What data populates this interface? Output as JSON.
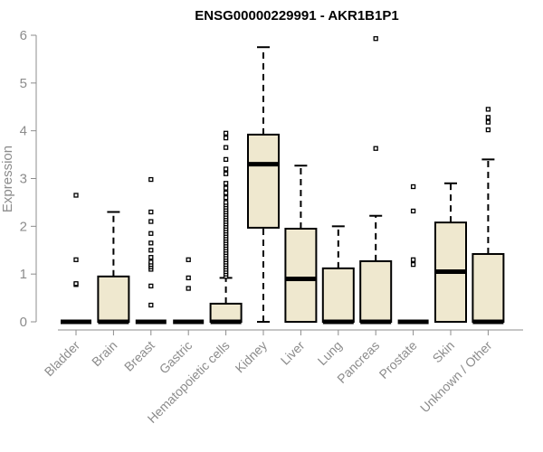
{
  "chart_data": {
    "type": "boxplot",
    "title": "ENSG00000229991 - AKR1B1P1",
    "ylabel": "Expression",
    "xlabel": "",
    "ylim": [
      0,
      6
    ],
    "yticks": [
      0,
      1,
      2,
      3,
      4,
      5,
      6
    ],
    "grid": false,
    "categories": [
      "Bladder",
      "Brain",
      "Breast",
      "Gastric",
      "Hematopoietic cells",
      "Kidney",
      "Liver",
      "Lung",
      "Pancreas",
      "Prostate",
      "Skin",
      "Unknown / Other"
    ],
    "boxes": [
      {
        "min": 0,
        "q1": 0,
        "median": 0,
        "q3": 0,
        "max": 0,
        "outliers": [
          0.78,
          0.8,
          1.3,
          2.65
        ]
      },
      {
        "min": 0,
        "q1": 0,
        "median": 0,
        "q3": 0.95,
        "max": 2.3,
        "outliers": []
      },
      {
        "min": 0,
        "q1": 0,
        "median": 0,
        "q3": 0,
        "max": 0,
        "outliers": [
          0.35,
          0.75,
          1.1,
          1.15,
          1.2,
          1.25,
          1.35,
          1.5,
          1.65,
          1.85,
          2.1,
          2.3,
          2.98
        ]
      },
      {
        "min": 0,
        "q1": 0,
        "median": 0,
        "q3": 0,
        "max": 0,
        "outliers": [
          0.7,
          0.92,
          1.3
        ]
      },
      {
        "min": 0,
        "q1": 0,
        "median": 0,
        "q3": 0.38,
        "max": 0.92,
        "outliers": [
          0.95,
          1.0,
          1.05,
          1.1,
          1.15,
          1.2,
          1.25,
          1.3,
          1.35,
          1.4,
          1.45,
          1.5,
          1.55,
          1.6,
          1.65,
          1.7,
          1.75,
          1.8,
          1.85,
          1.9,
          1.95,
          2.0,
          2.05,
          2.1,
          2.15,
          2.2,
          2.25,
          2.3,
          2.35,
          2.4,
          2.45,
          2.5,
          2.6,
          2.7,
          2.8,
          2.9,
          3.1,
          3.2,
          3.4,
          3.65,
          3.85,
          3.95
        ]
      },
      {
        "min": 0,
        "q1": 1.97,
        "median": 3.3,
        "q3": 3.92,
        "max": 5.75,
        "outliers": []
      },
      {
        "min": 0,
        "q1": 0,
        "median": 0.9,
        "q3": 1.95,
        "max": 3.27,
        "outliers": []
      },
      {
        "min": 0,
        "q1": 0,
        "median": 0,
        "q3": 1.12,
        "max": 2.0,
        "outliers": []
      },
      {
        "min": 0,
        "q1": 0,
        "median": 0,
        "q3": 1.27,
        "max": 2.22,
        "outliers": [
          3.63,
          5.93
        ]
      },
      {
        "min": 0,
        "q1": 0,
        "median": 0,
        "q3": 0,
        "max": 0,
        "outliers": [
          1.2,
          1.3,
          2.32,
          2.83
        ]
      },
      {
        "min": 0,
        "q1": 0,
        "median": 1.05,
        "q3": 2.08,
        "max": 2.9,
        "outliers": []
      },
      {
        "min": 0,
        "q1": 0,
        "median": 0,
        "q3": 1.42,
        "max": 3.4,
        "outliers": [
          4.02,
          4.18,
          4.28,
          4.45
        ]
      }
    ]
  }
}
